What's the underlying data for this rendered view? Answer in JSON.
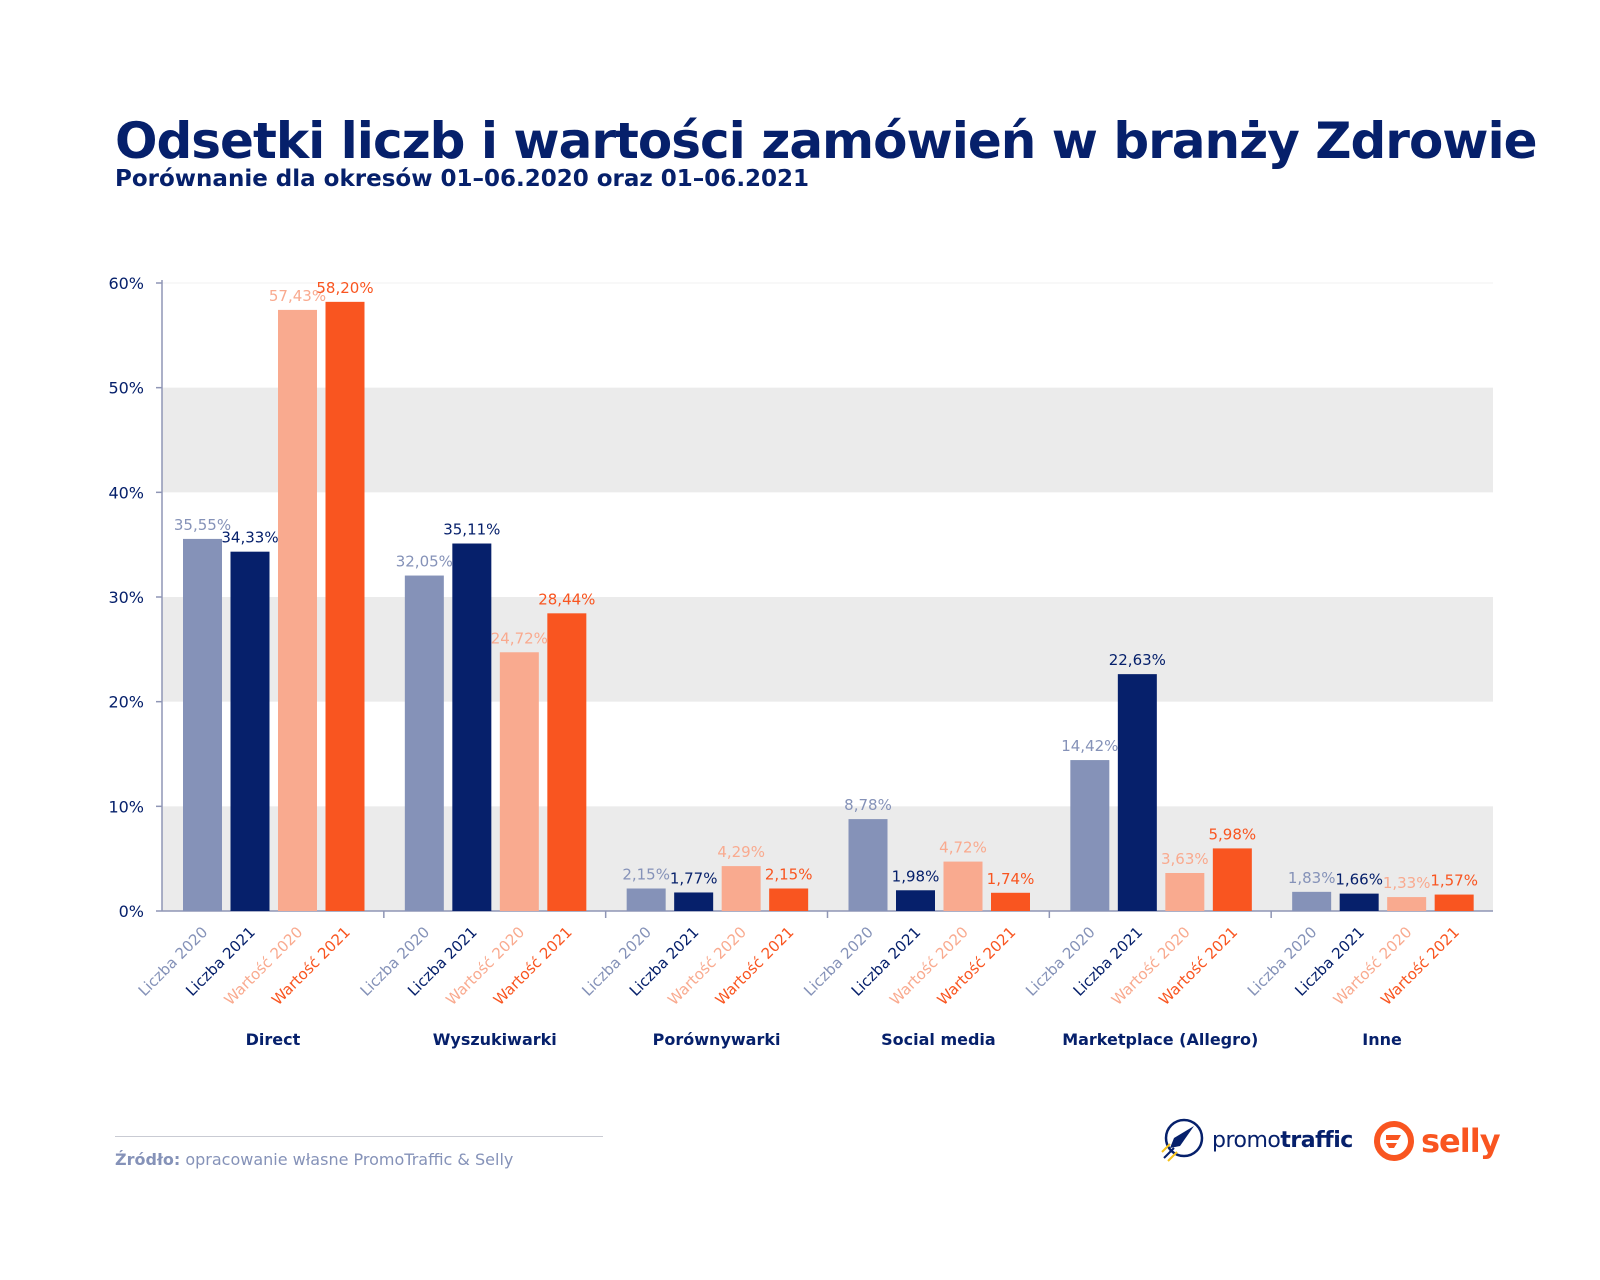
{
  "chart_data": {
    "type": "bar",
    "title": "Odsetki liczb i wartości zamówień w branży Zdrowie",
    "subtitle": "Porównanie dla okresów 01–06.2020 oraz 01–06.2021",
    "categories": [
      "Direct",
      "Wyszukiwarki",
      "Porównywarki",
      "Social media",
      "Marketplace (Allegro)",
      "Inne"
    ],
    "series": [
      {
        "name": "Liczba 2020",
        "color": "#8592b8",
        "values": [
          35.55,
          32.05,
          2.15,
          8.78,
          14.42,
          1.83
        ],
        "labels": [
          "35,55%",
          "32,05%",
          "2,15%",
          "8,78%",
          "14,42%",
          "1,83%"
        ]
      },
      {
        "name": "Liczba 2021",
        "color": "#06206b",
        "values": [
          34.33,
          35.11,
          1.77,
          1.98,
          22.63,
          1.66
        ],
        "labels": [
          "34,33%",
          "35,11%",
          "1,77%",
          "1,98%",
          "22,63%",
          "1,66%"
        ]
      },
      {
        "name": "Wartość 2020",
        "color": "#f9aa8f",
        "values": [
          57.43,
          24.72,
          4.29,
          4.72,
          3.63,
          1.33
        ],
        "labels": [
          "57,43%",
          "24,72%",
          "4,29%",
          "4,72%",
          "3,63%",
          "1,33%"
        ]
      },
      {
        "name": "Wartość 2021",
        "color": "#f95520",
        "values": [
          58.2,
          28.44,
          2.15,
          1.74,
          5.98,
          1.57
        ],
        "labels": [
          "58,20%",
          "28,44%",
          "2,15%",
          "1,74%",
          "5,98%",
          "1,57%"
        ]
      }
    ],
    "ylim": [
      0,
      60
    ],
    "yticks": [
      0,
      10,
      20,
      30,
      40,
      50,
      60
    ],
    "ytick_labels": [
      "0%",
      "10%",
      "20%",
      "30%",
      "40%",
      "50%",
      "60%"
    ],
    "grid": "alternating bands",
    "xlabel": "",
    "ylabel": ""
  },
  "source": {
    "label": "Źródło:",
    "text": " opracowanie własne PromoTraffic & Selly"
  },
  "logos": {
    "promotraffic": {
      "light": "promo",
      "bold": "traffic"
    },
    "selly": "selly"
  },
  "colors": {
    "navy": "#06206b",
    "band": "#ebebeb"
  }
}
